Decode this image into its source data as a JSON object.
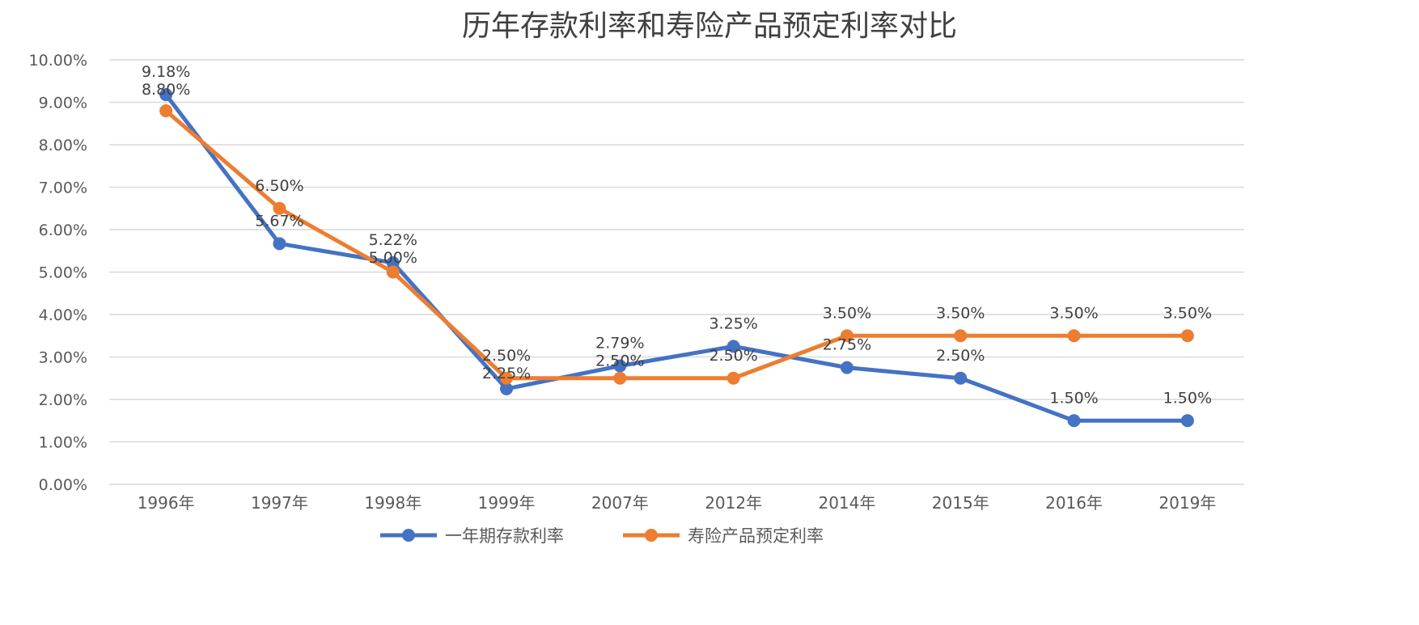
{
  "chart_data": {
    "type": "line",
    "title": "历年存款利率和寿险产品预定利率对比",
    "categories": [
      "1996年",
      "1997年",
      "1998年",
      "1999年",
      "2007年",
      "2012年",
      "2014年",
      "2015年",
      "2016年",
      "2019年"
    ],
    "series": [
      {
        "name": "一年期存款利率",
        "color": "#4472C4",
        "values": [
          9.18,
          5.67,
          5.22,
          2.25,
          2.79,
          3.25,
          2.75,
          2.5,
          1.5,
          1.5
        ],
        "labels": [
          "9.18%",
          "5.67%",
          "5.22%",
          "2.25%",
          "2.79%",
          "3.25%",
          "2.75%",
          "2.50%",
          "1.50%",
          "1.50%"
        ]
      },
      {
        "name": "寿险产品预定利率",
        "color": "#ED7D31",
        "values": [
          8.8,
          6.5,
          5.0,
          2.5,
          2.5,
          2.5,
          3.5,
          3.5,
          3.5,
          3.5
        ],
        "labels": [
          "8.80%",
          "6.50%",
          "5.00%",
          "2.50%",
          "2.50%",
          "2.50%",
          "3.50%",
          "3.50%",
          "3.50%",
          "3.50%"
        ]
      }
    ],
    "ylim": [
      0,
      10
    ],
    "yticks": [
      "0.00%",
      "1.00%",
      "2.00%",
      "3.00%",
      "4.00%",
      "5.00%",
      "6.00%",
      "7.00%",
      "8.00%",
      "9.00%",
      "10.00%"
    ],
    "grid": true,
    "legend": "bottom"
  }
}
